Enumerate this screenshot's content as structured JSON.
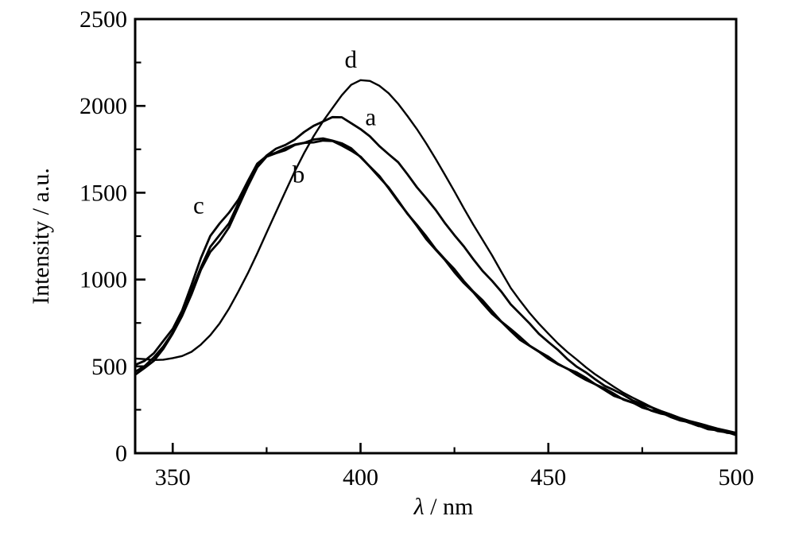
{
  "figure": {
    "background": "#ffffff",
    "ink_color": "#000000"
  },
  "chart_data": {
    "type": "line",
    "title": "",
    "xlabel": {
      "symbol": "λ",
      "unit": " / nm"
    },
    "ylabel": "Intensity / a.u.",
    "xlim": [
      340,
      500
    ],
    "ylim": [
      0,
      2500
    ],
    "grid": false,
    "xticks": {
      "major": [
        350,
        400,
        450,
        500
      ],
      "minor": [
        375,
        425,
        475
      ],
      "labels": [
        "350",
        "400",
        "450",
        "500"
      ]
    },
    "yticks": {
      "major": [
        0,
        500,
        1000,
        1500,
        2000,
        2500
      ],
      "minor": [
        250,
        750,
        1250,
        1750,
        2250
      ],
      "labels": [
        "0",
        "500",
        "1000",
        "1500",
        "2000",
        "2500"
      ]
    },
    "x_nm": [
      340,
      342.5,
      345,
      347.5,
      350,
      352.5,
      355,
      357.5,
      360,
      362.5,
      365,
      367.5,
      370,
      372.5,
      375,
      377.5,
      380,
      382.5,
      385,
      387.5,
      390,
      392.5,
      395,
      397.5,
      400,
      402.5,
      405,
      407.5,
      410,
      412.5,
      415,
      417.5,
      420,
      422.5,
      425,
      427.5,
      430,
      432.5,
      435,
      437.5,
      440,
      442.5,
      445,
      447.5,
      450,
      452.5,
      455,
      457.5,
      460,
      462.5,
      465,
      467.5,
      470,
      472.5,
      475,
      477.5,
      480,
      482.5,
      485,
      487.5,
      490,
      492.5,
      495,
      497.5,
      500
    ],
    "series": [
      {
        "name": "b",
        "label": "b",
        "noise": 8,
        "values": [
          452,
          484,
          532,
          600,
          682,
          790,
          920,
          1055,
          1160,
          1228,
          1302,
          1415,
          1540,
          1645,
          1700,
          1726,
          1748,
          1772,
          1788,
          1798,
          1802,
          1796,
          1776,
          1742,
          1700,
          1648,
          1590,
          1525,
          1455,
          1385,
          1316,
          1248,
          1182,
          1117,
          1053,
          991,
          931,
          873,
          817,
          763,
          714,
          669,
          627,
          588,
          551,
          517,
          486,
          458,
          432,
          400,
          370,
          342,
          316,
          292,
          269,
          248,
          228,
          210,
          193,
          177,
          162,
          148,
          135,
          122,
          111
        ]
      },
      {
        "name": "c",
        "label": "c",
        "noise": 8,
        "values": [
          502,
          532,
          575,
          640,
          718,
          828,
          968,
          1125,
          1258,
          1322,
          1380,
          1462,
          1565,
          1660,
          1712,
          1735,
          1755,
          1780,
          1795,
          1806,
          1810,
          1803,
          1782,
          1748,
          1705,
          1652,
          1593,
          1527,
          1457,
          1380,
          1308,
          1238,
          1170,
          1105,
          1042,
          980,
          921,
          864,
          809,
          756,
          704,
          659,
          618,
          579,
          545,
          511,
          480,
          452,
          426,
          395,
          365,
          338,
          312,
          288,
          266,
          245,
          226,
          208,
          191,
          175,
          160,
          146,
          133,
          121,
          109
        ]
      },
      {
        "name": "a",
        "label": "a",
        "noise": 7,
        "values": [
          470,
          500,
          548,
          618,
          700,
          808,
          938,
          1075,
          1185,
          1252,
          1325,
          1438,
          1558,
          1658,
          1718,
          1752,
          1778,
          1812,
          1848,
          1882,
          1912,
          1932,
          1928,
          1902,
          1868,
          1822,
          1772,
          1728,
          1675,
          1605,
          1535,
          1465,
          1395,
          1325,
          1255,
          1187,
          1120,
          1055,
          992,
          931,
          862,
          800,
          742,
          688,
          638,
          590,
          545,
          503,
          464,
          428,
          394,
          362,
          332,
          305,
          280,
          257,
          235,
          215,
          196,
          179,
          163,
          148,
          134,
          121,
          110
        ]
      },
      {
        "name": "d",
        "label": "d",
        "noise": 2,
        "values": [
          545,
          541,
          538,
          540,
          547,
          560,
          585,
          624,
          678,
          748,
          832,
          930,
          1038,
          1152,
          1270,
          1390,
          1508,
          1622,
          1728,
          1825,
          1910,
          1985,
          2062,
          2122,
          2148,
          2145,
          2118,
          2072,
          2012,
          1942,
          1865,
          1782,
          1695,
          1602,
          1507,
          1412,
          1318,
          1228,
          1140,
          1045,
          950,
          876,
          808,
          745,
          687,
          634,
          585,
          540,
          496,
          455,
          417,
          381,
          348,
          318,
          291,
          266,
          244,
          224,
          205,
          188,
          172,
          157,
          143,
          129,
          116
        ]
      }
    ],
    "annotations": [
      {
        "text": "c",
        "x": 356.9,
        "y": 1430
      },
      {
        "text": "b",
        "x": 383.5,
        "y": 1610
      },
      {
        "text": "a",
        "x": 402.7,
        "y": 1940
      },
      {
        "text": "d",
        "x": 397.4,
        "y": 2270
      }
    ]
  }
}
